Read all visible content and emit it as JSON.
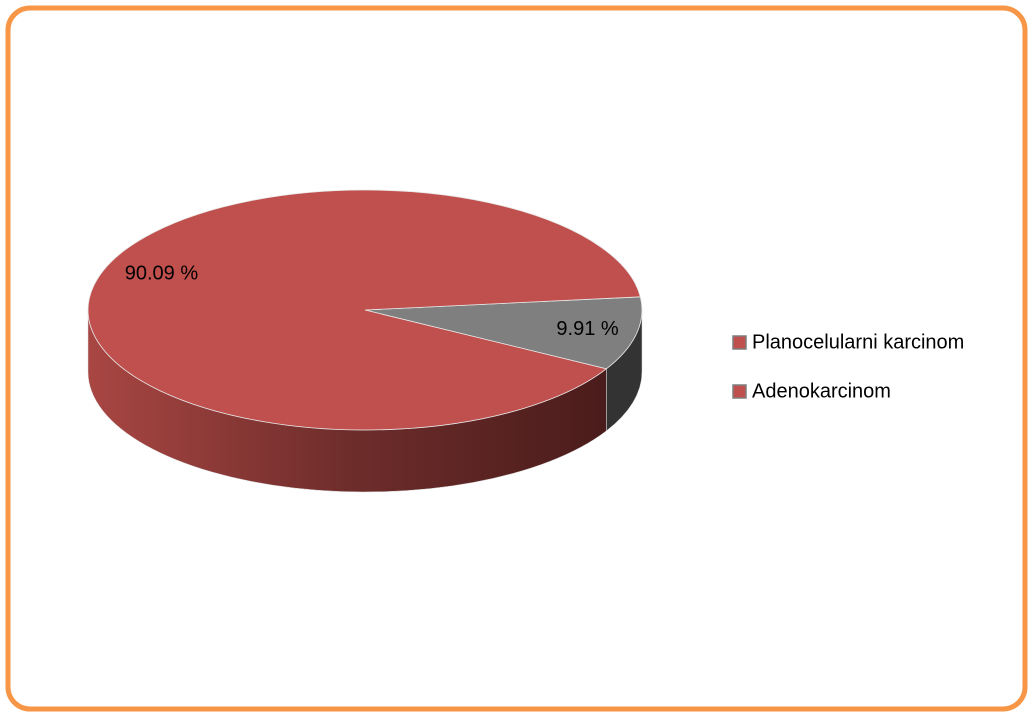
{
  "chart_data": {
    "type": "pie",
    "categories": [
      "Planocelularni karcinom",
      "Adenokarcinom"
    ],
    "values": [
      90.09,
      9.91
    ],
    "value_labels": [
      "90.09 %",
      "9.91 %"
    ],
    "colors": [
      "#c0504d",
      "#7f7f7f"
    ],
    "legend": "right"
  }
}
